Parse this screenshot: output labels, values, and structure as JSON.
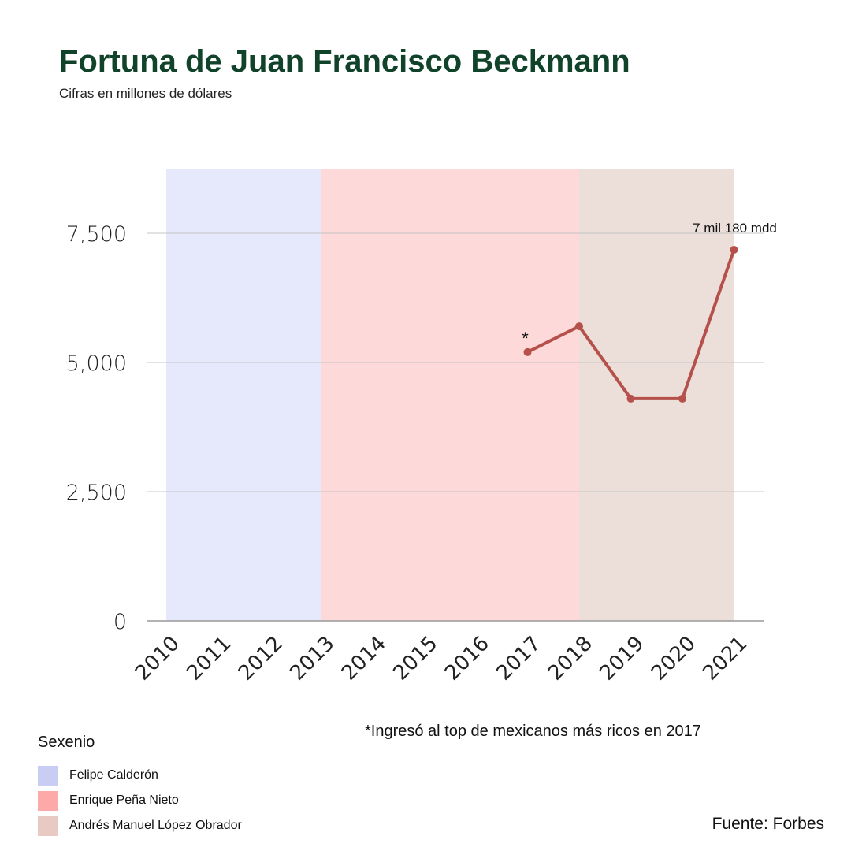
{
  "title": "Fortuna de Juan Francisco Beckmann",
  "subtitle": "Cifras en millones de dólares",
  "note": "*Ingresó al top de mexicanos más ricos en 2017",
  "source": "Fuente: Forbes",
  "legend": {
    "title": "Sexenio",
    "items": [
      {
        "label": "Felipe Calderón",
        "color": "#c9cdf4"
      },
      {
        "label": "Enrique Peña Nieto",
        "color": "#fda9a9"
      },
      {
        "label": "Andrés Manuel López Obrador",
        "color": "#e8c9c4"
      }
    ]
  },
  "chart_data": {
    "type": "line",
    "title": "Fortuna de Juan Francisco Beckmann",
    "subtitle": "Cifras en millones de dólares",
    "x": [
      "2010",
      "2011",
      "2012",
      "2013",
      "2014",
      "2015",
      "2016",
      "2017",
      "2018",
      "2019",
      "2020",
      "2021"
    ],
    "series": [
      {
        "values": [
          null,
          null,
          null,
          null,
          null,
          null,
          null,
          5200,
          5700,
          4300,
          4300,
          7180
        ],
        "color": "#b5504a"
      }
    ],
    "ylim": [
      0,
      8750
    ],
    "yticks": [
      0,
      2500,
      5000,
      7500
    ],
    "ytick_labels": [
      "0",
      "2,500",
      "5,000",
      "7,500"
    ],
    "grid": true,
    "bands": [
      {
        "from": "2010",
        "to": "2013",
        "label": "Felipe Calderón",
        "color": "#e6e8fc"
      },
      {
        "from": "2013",
        "to": "2018",
        "label": "Enrique Peña Nieto",
        "color": "#fdd9d9"
      },
      {
        "from": "2018",
        "to": "2021",
        "label": "Andrés Manuel López Obrador",
        "color": "#ecdfda"
      }
    ],
    "annotations": [
      {
        "x": "2017",
        "text": "*"
      },
      {
        "x": "2021",
        "text": "7 mil 180 mdd"
      }
    ]
  }
}
